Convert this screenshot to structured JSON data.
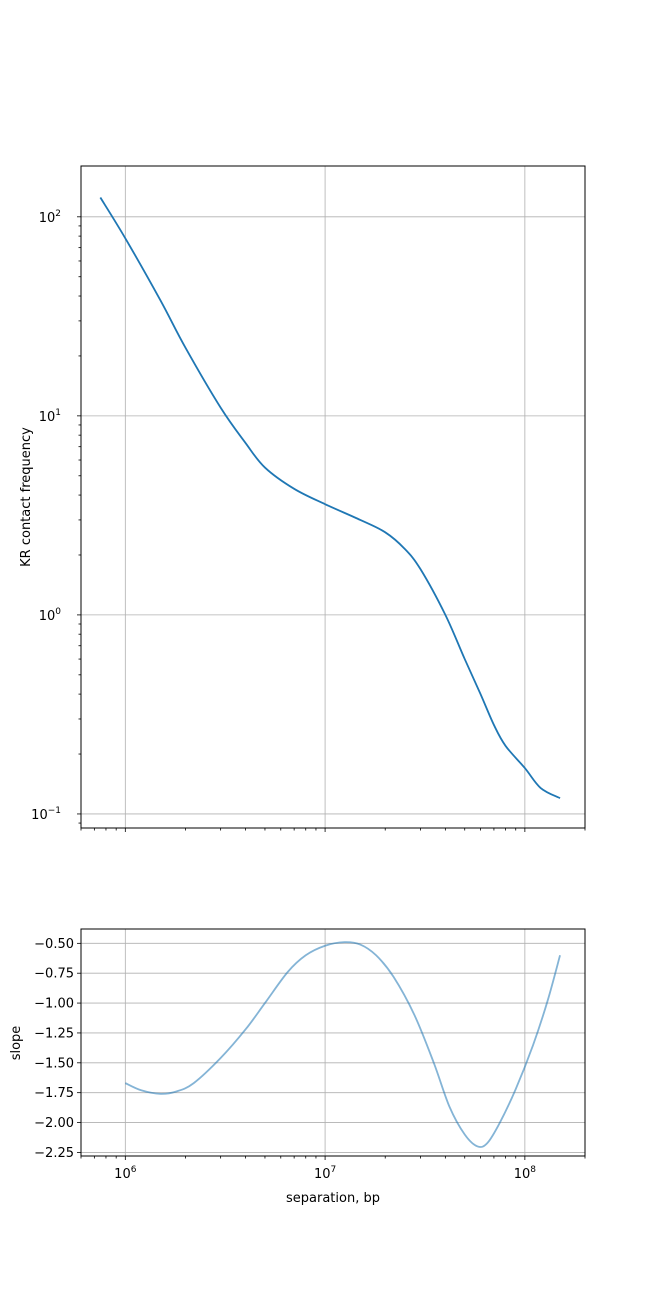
{
  "chart_data": [
    {
      "type": "line",
      "title": "",
      "xlabel": "",
      "ylabel": "KR contact frequency",
      "xscale": "log",
      "yscale": "log",
      "xlim": [
        600000,
        200000000
      ],
      "ylim": [
        0.085,
        180
      ],
      "grid": true,
      "line_color": "#1f77b4",
      "x_ticks": [
        1000000,
        10000000,
        100000000
      ],
      "x_ticklabels_shown": false,
      "y_ticks": [
        0.1,
        1,
        10,
        100
      ],
      "y_tick_labels": [
        {
          "base": "10",
          "exp": "−1"
        },
        {
          "base": "10",
          "exp": "0"
        },
        {
          "base": "10",
          "exp": "1"
        },
        {
          "base": "10",
          "exp": "2"
        }
      ],
      "series": [
        {
          "x": [
            750000,
            1000000,
            1500000,
            2000000,
            3000000,
            4000000,
            5000000,
            7000000,
            10000000,
            15000000,
            20000000,
            25000000,
            30000000,
            40000000,
            50000000,
            60000000,
            70000000,
            80000000,
            100000000,
            120000000,
            150000000
          ],
          "y": [
            125,
            78,
            38,
            22,
            11,
            7.3,
            5.5,
            4.3,
            3.6,
            3.0,
            2.6,
            2.15,
            1.7,
            1.0,
            0.6,
            0.4,
            0.28,
            0.22,
            0.17,
            0.135,
            0.12
          ]
        }
      ]
    },
    {
      "type": "line",
      "title": "",
      "xlabel": "separation, bp",
      "ylabel": "slope",
      "xscale": "log",
      "yscale": "linear",
      "xlim": [
        600000,
        200000000
      ],
      "ylim": [
        -2.28,
        -0.38
      ],
      "grid": true,
      "line_color": "#1f77b4",
      "line_opacity": 0.55,
      "x_ticks": [
        1000000,
        10000000,
        100000000
      ],
      "x_tick_labels": [
        {
          "base": "10",
          "exp": "6"
        },
        {
          "base": "10",
          "exp": "7"
        },
        {
          "base": "10",
          "exp": "8"
        }
      ],
      "y_ticks": [
        -0.5,
        -0.75,
        -1.0,
        -1.25,
        -1.5,
        -1.75,
        -2.0,
        -2.25
      ],
      "y_tick_labels": [
        "−0.50",
        "−0.75",
        "−1.00",
        "−1.25",
        "−1.50",
        "−1.75",
        "−2.00",
        "−2.25"
      ],
      "series": [
        {
          "x": [
            1000000,
            1200000,
            1500000,
            1800000,
            2200000,
            3000000,
            4000000,
            5000000,
            6500000,
            8000000,
            10000000,
            12500000,
            15000000,
            18000000,
            22000000,
            28000000,
            35000000,
            42000000,
            50000000,
            58000000,
            65000000,
            75000000,
            90000000,
            110000000,
            130000000,
            150000000
          ],
          "y": [
            -1.67,
            -1.73,
            -1.76,
            -1.74,
            -1.67,
            -1.46,
            -1.22,
            -1.0,
            -0.74,
            -0.6,
            -0.52,
            -0.49,
            -0.51,
            -0.6,
            -0.78,
            -1.1,
            -1.5,
            -1.87,
            -2.1,
            -2.2,
            -2.17,
            -2.0,
            -1.72,
            -1.35,
            -0.98,
            -0.6
          ]
        }
      ]
    }
  ]
}
